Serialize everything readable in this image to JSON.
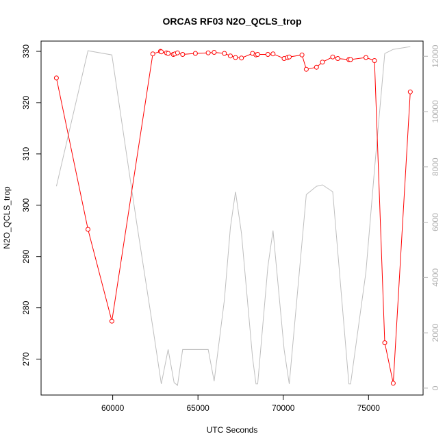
{
  "chart_data": {
    "type": "line",
    "title": "ORCAS RF03 N2O_QCLS_trop",
    "xlabel": "UTC Seconds",
    "ylabel": "N2O_QCLS_trop",
    "xlim": [
      55800,
      78200
    ],
    "ylim": [
      263,
      332
    ],
    "y2lim": [
      -250,
      12550
    ],
    "x_ticks": [
      60000,
      65000,
      70000,
      75000
    ],
    "y_ticks": [
      270,
      280,
      290,
      300,
      310,
      320,
      330
    ],
    "y2_ticks": [
      0,
      2000,
      4000,
      6000,
      8000,
      10000,
      12000
    ],
    "grid": false,
    "legend": "none",
    "colors": {
      "primary": "#ff0000",
      "secondary": "#bebebe"
    },
    "series": [
      {
        "axis": "left",
        "style": "line+points",
        "color": "#ff0000",
        "x": [
          56700,
          58550,
          59950,
          62350,
          62800,
          62850,
          63150,
          63250,
          63550,
          63650,
          63800,
          64100,
          64850,
          65600,
          65950,
          66550,
          66900,
          67200,
          67550,
          68200,
          68400,
          68500,
          69100,
          69400,
          70050,
          70250,
          70350,
          71100,
          71350,
          71950,
          72300,
          72900,
          73200,
          73850,
          73950,
          74850,
          75350,
          75950,
          76450,
          77450
        ],
        "y": [
          324.8,
          295.3,
          277.4,
          329.5,
          330.0,
          329.9,
          329.7,
          329.6,
          329.4,
          329.5,
          329.7,
          329.4,
          329.6,
          329.7,
          329.8,
          329.6,
          329.1,
          328.8,
          328.7,
          329.6,
          329.3,
          329.4,
          329.4,
          329.5,
          328.6,
          328.8,
          328.9,
          329.3,
          326.5,
          326.9,
          327.9,
          328.9,
          328.6,
          328.4,
          328.4,
          328.8,
          328.2,
          273.2,
          265.3,
          322.1
        ]
      },
      {
        "axis": "right",
        "style": "line",
        "color": "#bebebe",
        "x": [
          56700,
          58550,
          59950,
          61400,
          62350,
          62850,
          63250,
          63600,
          63800,
          64100,
          64850,
          65600,
          65950,
          66550,
          66900,
          67200,
          67550,
          68200,
          68400,
          68500,
          69100,
          69400,
          70050,
          70350,
          71350,
          71950,
          72300,
          72900,
          73850,
          73950,
          74850,
          75350,
          75950,
          76450,
          77450
        ],
        "y": [
          7300,
          12200,
          12050,
          6000,
          2200,
          150,
          1400,
          200,
          100,
          1400,
          1400,
          1400,
          250,
          3200,
          5800,
          7100,
          5600,
          1100,
          150,
          150,
          4400,
          5700,
          1400,
          150,
          7000,
          7300,
          7350,
          7100,
          150,
          150,
          4200,
          7900,
          12100,
          12250,
          12350
        ]
      }
    ]
  }
}
